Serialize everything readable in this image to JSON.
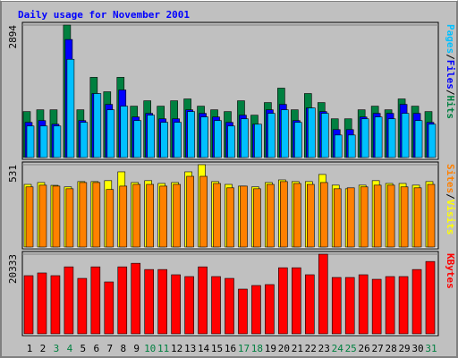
{
  "title": "Daily usage for November 2001",
  "chart_data": [
    {
      "type": "bar",
      "legend_separator": "/",
      "ylim": [
        0,
        2894
      ],
      "yticks": [
        2894
      ],
      "series": [
        {
          "name": "Hits",
          "color": "#008040",
          "values": [
            1004,
            1043,
            1043,
            2894,
            1043,
            1752,
            1437,
            1752,
            1122,
            1240,
            1122,
            1240,
            1280,
            1122,
            1043,
            1004,
            1240,
            925,
            1201,
            1516,
            1043,
            1398,
            1201,
            846,
            846,
            1043,
            1122,
            1043,
            1280,
            1122,
            1004
          ]
        },
        {
          "name": "Files",
          "color": "#0000ff",
          "values": [
            768,
            807,
            728,
            2579,
            807,
            1398,
            1161,
            1476,
            886,
            965,
            846,
            846,
            1043,
            965,
            886,
            768,
            925,
            728,
            1043,
            1161,
            807,
            1083,
            1004,
            610,
            610,
            886,
            965,
            965,
            1161,
            965,
            768
          ]
        },
        {
          "name": "Pages",
          "color": "#00c0ff",
          "values": [
            689,
            689,
            689,
            2146,
            768,
            1398,
            1043,
            1122,
            807,
            925,
            768,
            768,
            1004,
            886,
            807,
            689,
            846,
            728,
            965,
            1043,
            768,
            1083,
            965,
            492,
            492,
            846,
            886,
            846,
            965,
            807,
            728
          ]
        }
      ]
    },
    {
      "type": "bar",
      "legend_separator": "/",
      "ylim": [
        0,
        531
      ],
      "yticks": [
        531
      ],
      "series": [
        {
          "name": "Visits",
          "color": "#ffff00",
          "values": [
            404,
            416,
            398,
            388,
            422,
            422,
            428,
            485,
            416,
            428,
            410,
            416,
            485,
            531,
            422,
            404,
            393,
            388,
            416,
            433,
            422,
            422,
            468,
            399,
            376,
            399,
            428,
            410,
            410,
            399,
            422
          ]
        },
        {
          "name": "Sites",
          "color": "#ff8000",
          "values": [
            388,
            399,
            393,
            376,
            416,
            416,
            371,
            393,
            404,
            404,
            393,
            404,
            456,
            456,
            410,
            382,
            393,
            376,
            404,
            422,
            410,
            404,
            416,
            376,
            382,
            388,
            399,
            399,
            388,
            382,
            404
          ]
        }
      ]
    },
    {
      "type": "bar",
      "ylim": [
        0,
        20333
      ],
      "yticks": [
        20333
      ],
      "categories": [
        "1",
        "2",
        "3",
        "4",
        "5",
        "6",
        "7",
        "8",
        "9",
        "10",
        "11",
        "12",
        "13",
        "14",
        "15",
        "16",
        "17",
        "18",
        "19",
        "20",
        "21",
        "22",
        "23",
        "24",
        "25",
        "26",
        "27",
        "28",
        "29",
        "30",
        "31"
      ],
      "label_colors": [
        "#000000",
        "#000000",
        "#008040",
        "#008040",
        "#000000",
        "#000000",
        "#000000",
        "#000000",
        "#000000",
        "#008040",
        "#008040",
        "#000000",
        "#000000",
        "#000000",
        "#000000",
        "#000000",
        "#008040",
        "#008040",
        "#000000",
        "#000000",
        "#000000",
        "#000000",
        "#000000",
        "#008040",
        "#008040",
        "#000000",
        "#000000",
        "#000000",
        "#000000",
        "#000000",
        "#008040"
      ],
      "series": [
        {
          "name": "KBytes",
          "color": "#ff0000",
          "values": [
            14850,
            15540,
            14850,
            17100,
            14160,
            17100,
            13250,
            17100,
            18010,
            16420,
            16420,
            15080,
            14620,
            17100,
            14620,
            14160,
            11420,
            12340,
            12570,
            16870,
            16870,
            15080,
            20333,
            14390,
            14390,
            15080,
            13930,
            14620,
            14620,
            16420,
            18470
          ]
        }
      ]
    }
  ]
}
